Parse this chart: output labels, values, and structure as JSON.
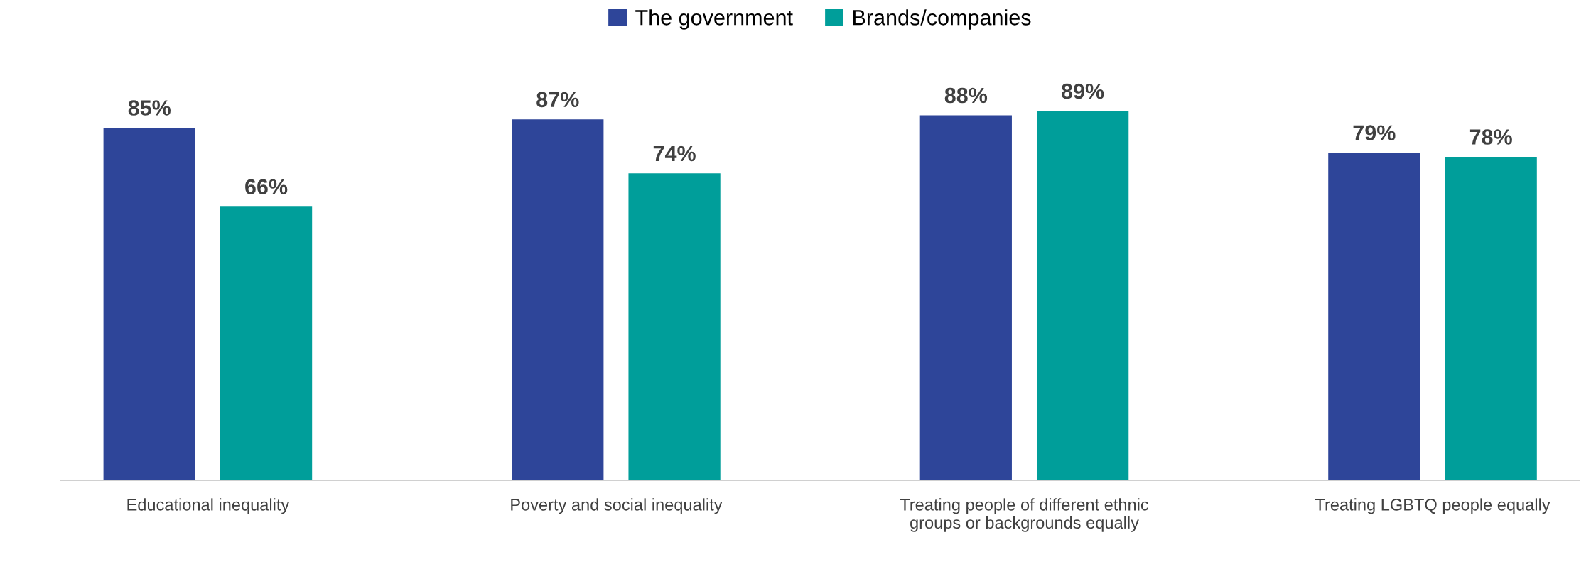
{
  "chart_data": {
    "type": "bar",
    "categories": [
      "Educational inequality",
      "Poverty and social inequality",
      "Treating people of different ethnic\ngroups or backgrounds equally",
      "Treating LGBTQ people equally"
    ],
    "series": [
      {
        "name": "The government",
        "color": "#2e4599",
        "values": [
          85,
          87,
          88,
          79
        ],
        "value_labels": [
          "85%",
          "87%",
          "88%",
          "79%"
        ]
      },
      {
        "name": "Brands/companies",
        "color": "#009e9a",
        "values": [
          66,
          74,
          89,
          78
        ],
        "value_labels": [
          "66%",
          "74%",
          "89%",
          "78%"
        ]
      }
    ],
    "legend": "top",
    "grid": false
  }
}
